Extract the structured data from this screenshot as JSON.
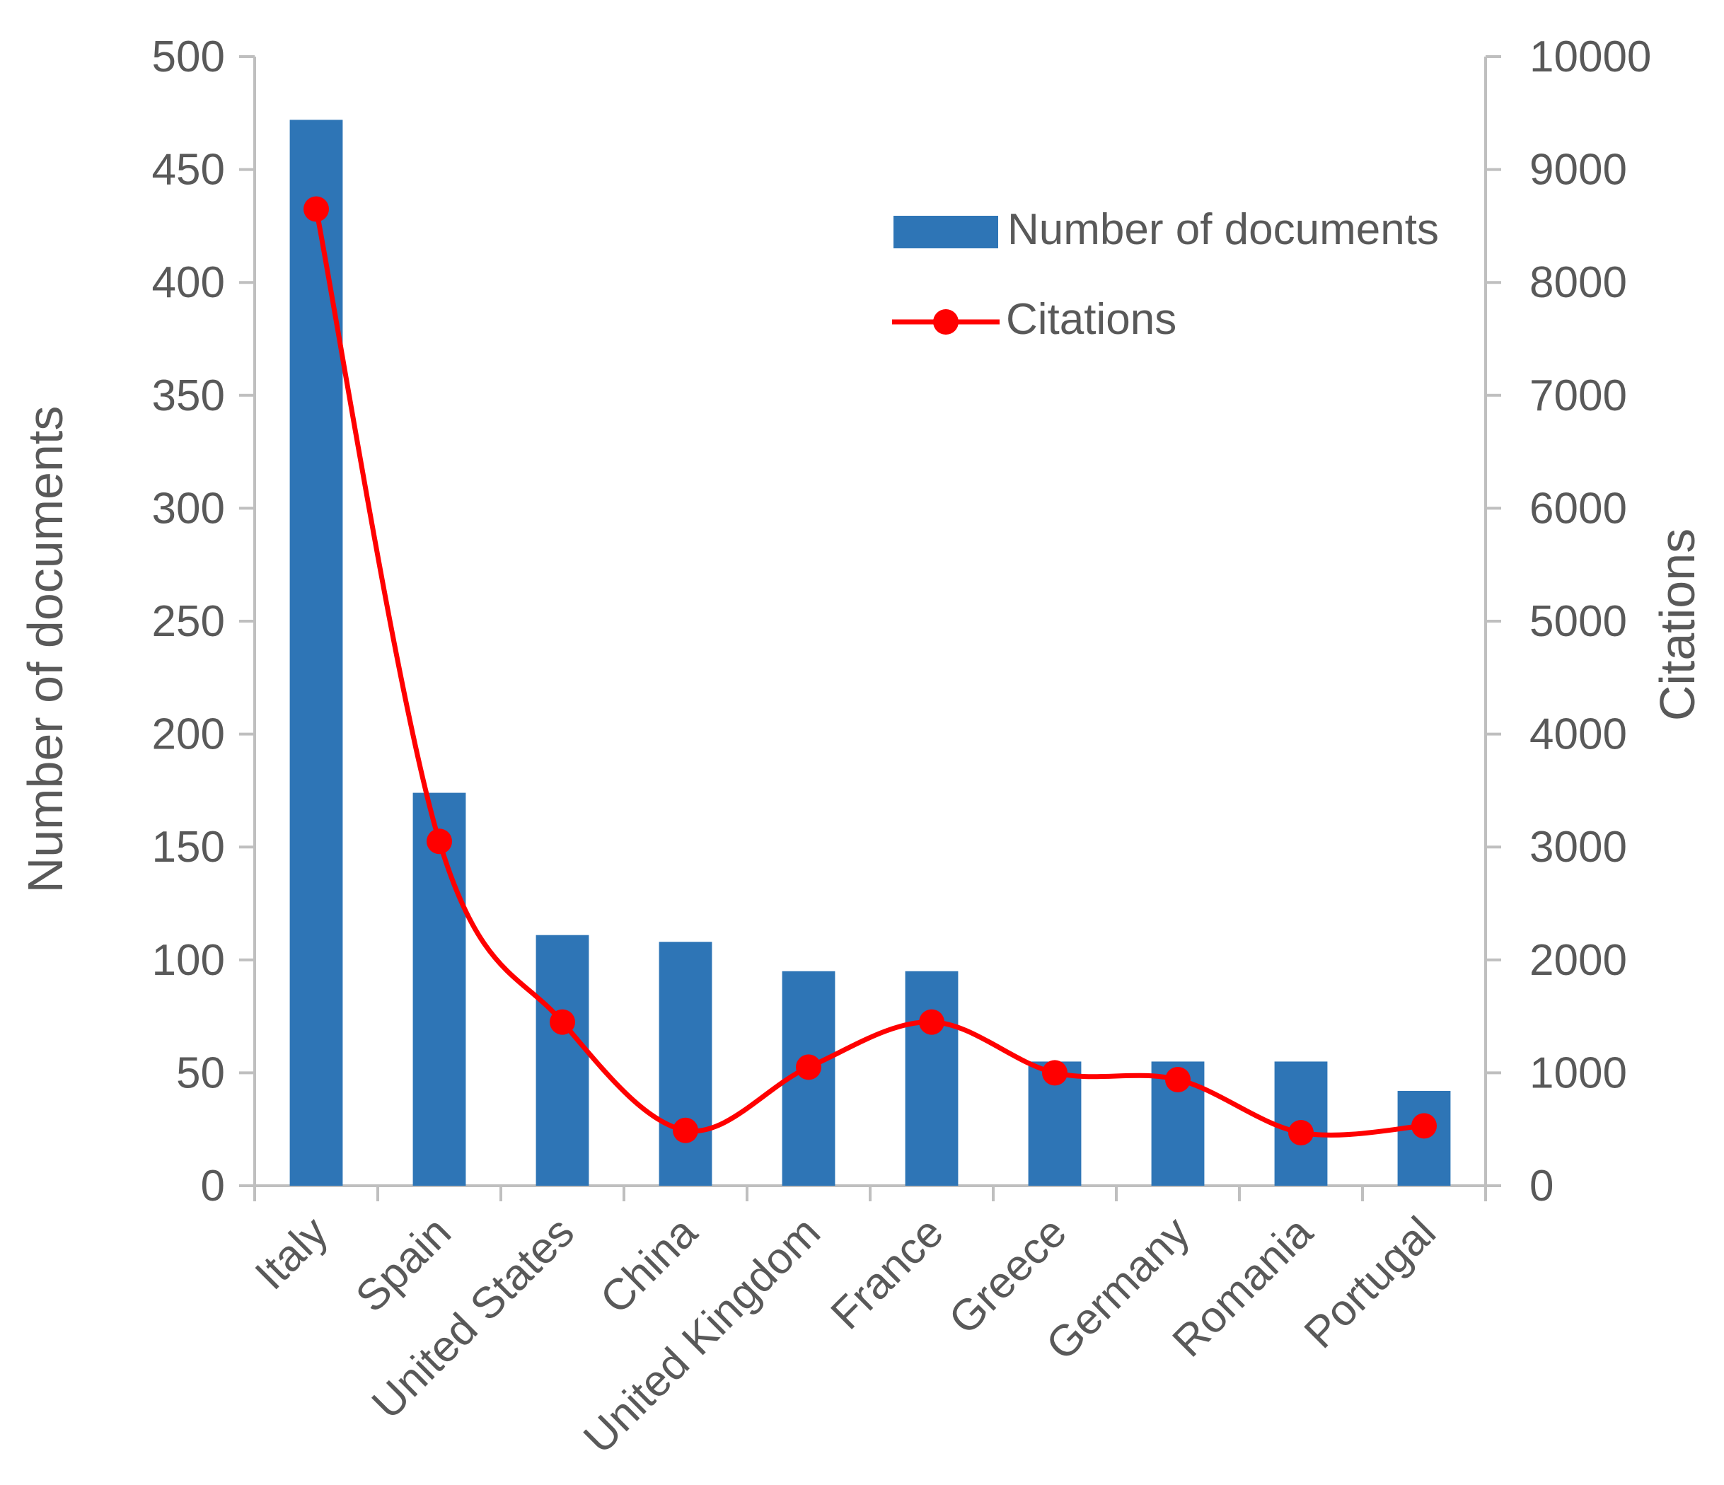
{
  "chart_data": {
    "type": "bar",
    "categories": [
      "Italy",
      "Spain",
      "United States",
      "China",
      "United Kingdom",
      "France",
      "Greece",
      "Germany",
      "Romania",
      "Portugal"
    ],
    "series": [
      {
        "name": "Number of documents",
        "type": "bar",
        "axis": "left",
        "color": "#2e75b6",
        "values": [
          472,
          174,
          111,
          108,
          95,
          95,
          55,
          55,
          55,
          42
        ]
      },
      {
        "name": "Citations",
        "type": "line",
        "smooth": true,
        "axis": "right",
        "color": "#ff0000",
        "values": [
          8650,
          3050,
          1450,
          490,
          1050,
          1450,
          1000,
          940,
          470,
          530
        ]
      }
    ],
    "ylabel": "Number of documents",
    "ylabel_right": "Citations",
    "ylim": [
      0,
      500
    ],
    "ylim_right": [
      0,
      10000
    ],
    "yticks": [
      0,
      50,
      100,
      150,
      200,
      250,
      300,
      350,
      400,
      450,
      500
    ],
    "yticks_right": [
      0,
      1000,
      2000,
      3000,
      4000,
      5000,
      6000,
      7000,
      8000,
      9000,
      10000
    ],
    "grid": false,
    "legend_position": "top-right"
  }
}
